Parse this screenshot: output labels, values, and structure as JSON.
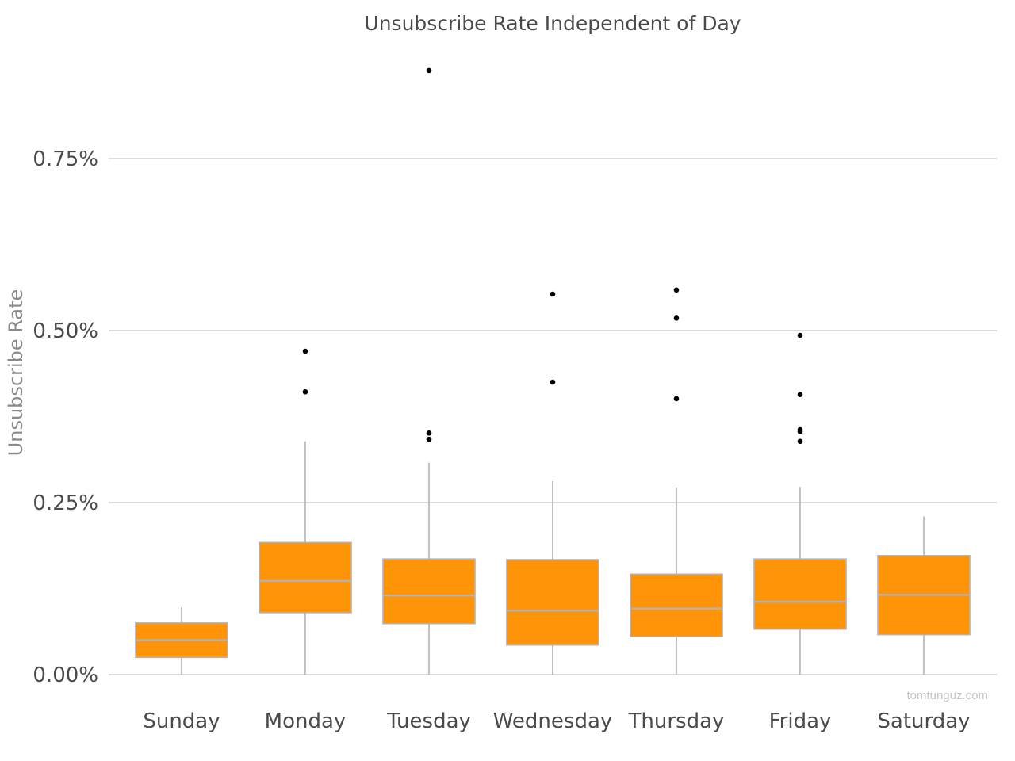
{
  "chart_data": {
    "type": "box",
    "title": "Unsubscribe Rate Independent of Day",
    "ylabel": "Unsubscribe Rate",
    "xlabel": "",
    "ylim": [
      0,
      0.0095
    ],
    "yticks": [
      0,
      0.0025,
      0.005,
      0.0075
    ],
    "ytick_labels": [
      "0.00%",
      "0.25%",
      "0.50%",
      "0.75%"
    ],
    "grid": true,
    "colors": {
      "box_fill": "#ff9408",
      "box_edge": "#b3b3b3",
      "outlier": "#000000",
      "grid": "#c8c8c8"
    },
    "categories": [
      "Sunday",
      "Monday",
      "Tuesday",
      "Wednesday",
      "Thursday",
      "Friday",
      "Saturday"
    ],
    "boxes": [
      {
        "whisker_low": 0.0,
        "q1": 0.00025,
        "median": 0.0005,
        "q3": 0.00075,
        "whisker_high": 0.00098,
        "outliers": []
      },
      {
        "whisker_low": 0.0,
        "q1": 0.0009,
        "median": 0.00136,
        "q3": 0.00192,
        "whisker_high": 0.00339,
        "outliers": [
          0.00411,
          0.0047
        ]
      },
      {
        "whisker_low": 0.0,
        "q1": 0.00074,
        "median": 0.00115,
        "q3": 0.00168,
        "whisker_high": 0.00308,
        "outliers": [
          0.00342,
          0.00351,
          0.00878
        ]
      },
      {
        "whisker_low": 0.0,
        "q1": 0.00043,
        "median": 0.00093,
        "q3": 0.00167,
        "whisker_high": 0.00281,
        "outliers": [
          0.00425,
          0.00553
        ]
      },
      {
        "whisker_low": 0.0,
        "q1": 0.00055,
        "median": 0.00096,
        "q3": 0.00146,
        "whisker_high": 0.00272,
        "outliers": [
          0.00401,
          0.00518,
          0.00559
        ]
      },
      {
        "whisker_low": 0.0,
        "q1": 0.00066,
        "median": 0.00106,
        "q3": 0.00168,
        "whisker_high": 0.00273,
        "outliers": [
          0.00339,
          0.00353,
          0.00356,
          0.00407,
          0.00493
        ]
      },
      {
        "whisker_low": 0.0,
        "q1": 0.00058,
        "median": 0.00116,
        "q3": 0.00173,
        "whisker_high": 0.0023,
        "outliers": []
      }
    ]
  },
  "watermark": "tomtunguz.com"
}
